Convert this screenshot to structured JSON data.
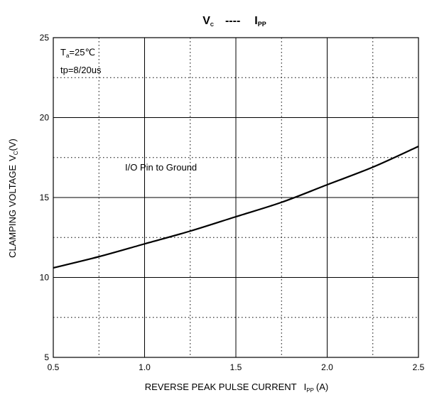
{
  "chart_data": {
    "type": "line",
    "title": {
      "part1_main": "V",
      "part1_sub": "C",
      "separator": "----",
      "part2_main": "I",
      "part2_sub": "PP"
    },
    "xlabel": {
      "main": "REVERSE PEAK PULSE CURRENT",
      "sub_symbol": "I",
      "sub": "PP",
      "unit": "(A)"
    },
    "ylabel": {
      "main": "CLAMPING VOLTAGE",
      "symbol": "V",
      "sub": "C",
      "unit": "(V)"
    },
    "xlim": [
      0.5,
      2.5
    ],
    "ylim": [
      5,
      25
    ],
    "x_ticks": [
      0.5,
      1.0,
      1.5,
      2.0,
      2.5
    ],
    "x_tick_labels": [
      "0.5",
      "1.0",
      "1.5",
      "2.0",
      "2.5"
    ],
    "y_ticks": [
      5,
      10,
      15,
      20,
      25
    ],
    "y_tick_labels": [
      "5",
      "10",
      "15",
      "20",
      "25"
    ],
    "grid": {
      "major_x": [
        1.0,
        1.5,
        2.0
      ],
      "major_y": [
        10,
        15,
        20
      ],
      "minor_x": [
        0.75,
        1.25,
        1.75,
        2.25
      ],
      "minor_y": [
        7.5,
        12.5,
        17.5,
        22.5
      ]
    },
    "conditions": {
      "temp_symbol": "T",
      "temp_sub": "a",
      "temp_value": "=25℃",
      "pulse": "tp=8/20us"
    },
    "series": [
      {
        "name": "I/O Pin to Ground",
        "x": [
          0.5,
          0.75,
          1.0,
          1.25,
          1.5,
          1.75,
          2.0,
          2.25,
          2.5
        ],
        "y": [
          10.6,
          11.3,
          12.1,
          12.9,
          13.8,
          14.7,
          15.8,
          16.9,
          18.2
        ]
      }
    ],
    "legend": "inline-annotation"
  },
  "colors": {
    "line": "#000000",
    "grid": "#000000",
    "background": "#ffffff"
  }
}
